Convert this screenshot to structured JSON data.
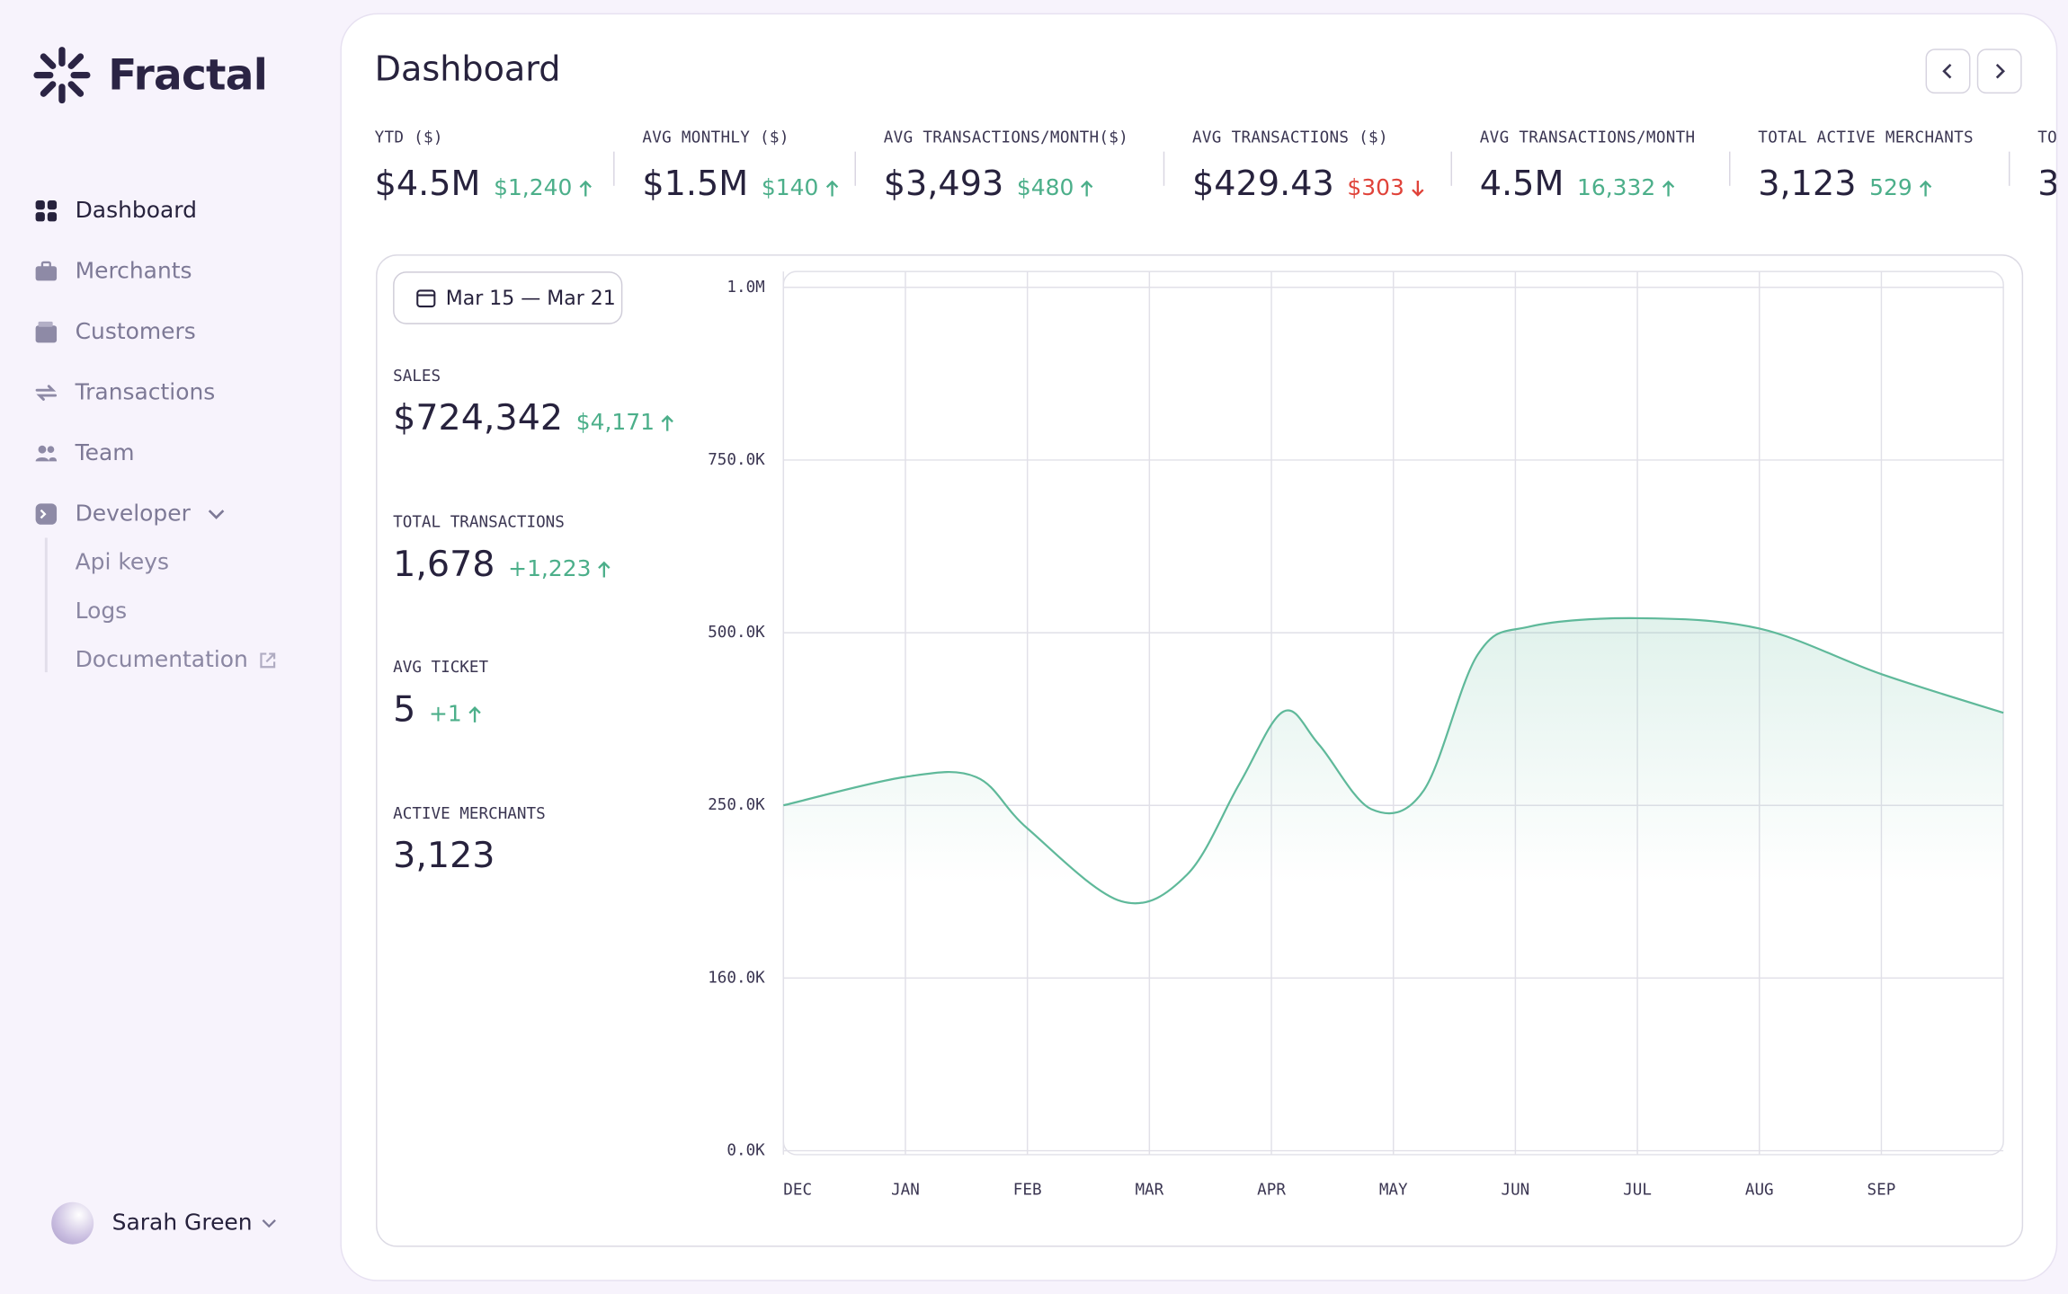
{
  "sidebar": {
    "brand": "Fractal",
    "nav": [
      "Dashboard",
      "Merchants",
      "Customers",
      "Transactions",
      "Team",
      "Developer"
    ],
    "developer_links": [
      "Api keys",
      "Logs",
      "Documentation"
    ],
    "user": "Sarah Green"
  },
  "header": {
    "title": "Dashboard"
  },
  "stats": [
    {
      "label": "YTD ($)",
      "value": "$4.5M",
      "change": "$1,240",
      "direction": "up"
    },
    {
      "label": "AVG MONTHLY ($)",
      "value": "$1.5M",
      "change": "$140",
      "direction": "up"
    },
    {
      "label": "AVG TRANSACTIONS/MONTH($)",
      "value": "$3,493",
      "change": "$480",
      "direction": "up"
    },
    {
      "label": "AVG TRANSACTIONS ($)",
      "value": "$429.43",
      "change": "$303",
      "direction": "down"
    },
    {
      "label": "AVG TRANSACTIONS/MONTH",
      "value": "4.5M",
      "change": "16,332",
      "direction": "up"
    },
    {
      "label": "TOTAL ACTIVE MERCHANTS",
      "value": "3,123",
      "change": "529",
      "direction": "up"
    },
    {
      "label": "TO",
      "value": "3"
    }
  ],
  "summary": {
    "date_range": "Mar 15 — Mar 21",
    "metrics": [
      {
        "label": "SALES",
        "value": "$724,342",
        "change": "$4,171",
        "direction": "up"
      },
      {
        "label": "TOTAL TRANSACTIONS",
        "value": "1,678",
        "change": "+1,223",
        "direction": "up"
      },
      {
        "label": "AVG TICKET",
        "value": "5",
        "change": "+1",
        "direction": "up"
      },
      {
        "label": "ACTIVE MERCHANTS",
        "value": "3,123"
      }
    ]
  },
  "chart_data": {
    "type": "line",
    "x": [
      0,
      0.99,
      1.58,
      2.0,
      2.77,
      3.31,
      3.74,
      4.1,
      4.39,
      4.82,
      5.25,
      5.69,
      6.12,
      7.0,
      8.0,
      9.0,
      10.0
    ],
    "series": [
      {
        "color": "#5fb99a",
        "values": [
          250000,
          291000,
          291000,
          238000,
          200000,
          214000,
          282000,
          386000,
          338000,
          248000,
          272000,
          468000,
          509000,
          521000,
          506000,
          440000,
          384000
        ]
      }
    ],
    "xlim": [
      0,
      10
    ],
    "xticks": [
      {
        "value": 0,
        "label": "DEC"
      },
      {
        "value": 1,
        "label": "JAN"
      },
      {
        "value": 2,
        "label": "FEB"
      },
      {
        "value": 3,
        "label": "MAR"
      },
      {
        "value": 4,
        "label": "APR"
      },
      {
        "value": 5,
        "label": "MAY"
      },
      {
        "value": 6,
        "label": "JUN"
      },
      {
        "value": 7,
        "label": "JUL"
      },
      {
        "value": 8,
        "label": "AUG"
      },
      {
        "value": 9,
        "label": "SEP"
      }
    ],
    "ylim": [
      0,
      1000000
    ],
    "yticks": [
      {
        "value": 0,
        "label": "0.0K"
      },
      {
        "value": 160000,
        "label": "160.0K"
      },
      {
        "value": 250000,
        "label": "250.0K"
      },
      {
        "value": 500000,
        "label": "500.0K"
      },
      {
        "value": 750000,
        "label": "750.0K"
      },
      {
        "value": 1000000,
        "label": "1.0M"
      }
    ],
    "grid": true
  }
}
